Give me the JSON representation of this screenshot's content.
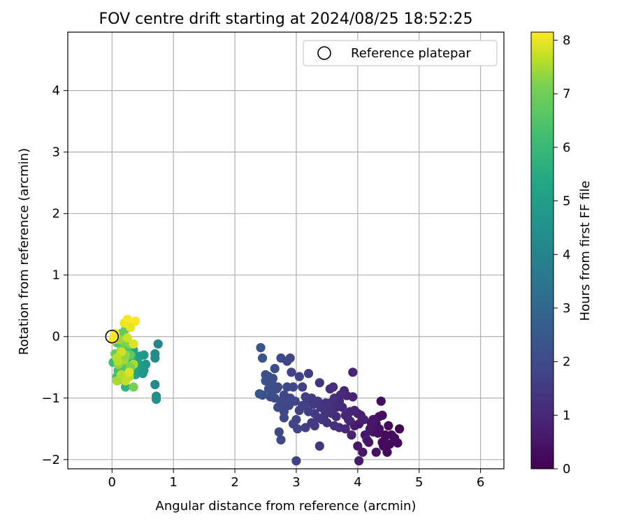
{
  "chart_data": {
    "type": "scatter",
    "title": "FOV centre drift starting at 2024/08/25 18:52:25",
    "xlabel": "Angular distance from reference (arcmin)",
    "ylabel": "Rotation from reference (arcmin)",
    "xlim": [
      -0.72,
      6.38
    ],
    "ylim": [
      -2.15,
      4.95
    ],
    "xticks": [
      0,
      1,
      2,
      3,
      4,
      5,
      6
    ],
    "xtick_labels": [
      "0",
      "1",
      "2",
      "3",
      "4",
      "5",
      "6"
    ],
    "yticks": [
      -2,
      -1,
      0,
      1,
      2,
      3,
      4
    ],
    "ytick_labels": [
      "−2",
      "−1",
      "0",
      "1",
      "2",
      "3",
      "4"
    ],
    "grid": true,
    "legend": {
      "position": "top-right",
      "label": "Reference platepar"
    },
    "reference_point": {
      "x": 0,
      "y": 0
    },
    "colorbar": {
      "label": "Hours from first FF file",
      "colormap": "viridis",
      "range": [
        0,
        8.15
      ],
      "ticks": [
        0,
        1,
        2,
        3,
        4,
        5,
        6,
        7,
        8
      ],
      "tick_labels": [
        "0",
        "1",
        "2",
        "3",
        "4",
        "5",
        "6",
        "7",
        "8"
      ]
    },
    "series": [
      {
        "points": [
          [
            4.68,
            -1.5
          ],
          [
            4.65,
            -1.73
          ],
          [
            4.55,
            -1.6
          ],
          [
            4.45,
            -1.6
          ],
          [
            4.4,
            -1.28
          ],
          [
            4.35,
            -1.3
          ],
          [
            4.3,
            -1.88
          ],
          [
            4.25,
            -1.55
          ],
          [
            4.22,
            -1.4
          ],
          [
            4.08,
            -1.88
          ],
          [
            4.0,
            -1.78
          ],
          [
            3.95,
            -1.45
          ],
          [
            4.48,
            -1.88
          ],
          [
            4.42,
            -1.78
          ],
          [
            4.38,
            -1.05
          ],
          [
            4.33,
            -1.57
          ],
          [
            4.28,
            -1.35
          ],
          [
            4.12,
            -1.6
          ],
          [
            4.15,
            -1.68
          ],
          [
            4.02,
            -1.42
          ],
          [
            4.05,
            -1.28
          ],
          [
            4.18,
            -1.72
          ],
          [
            4.5,
            -1.45
          ],
          [
            4.6,
            -1.65
          ],
          [
            4.1,
            -1.35
          ],
          [
            4.2,
            -1.5
          ],
          [
            4.3,
            -1.42
          ],
          [
            4.45,
            -1.62
          ],
          [
            4.52,
            -1.75
          ],
          [
            4.35,
            -1.5
          ],
          [
            3.9,
            -1.6
          ],
          [
            4.0,
            -1.25
          ],
          [
            4.25,
            -1.35
          ],
          [
            4.4,
            -1.72
          ],
          [
            4.02,
            -2.02
          ],
          [
            3.92,
            -0.58
          ],
          [
            3.8,
            -1.28
          ],
          [
            3.75,
            -1.15
          ],
          [
            3.7,
            -1.48
          ],
          [
            3.88,
            -1.38
          ],
          [
            3.78,
            -0.88
          ],
          [
            3.82,
            -0.96
          ],
          [
            3.65,
            -1.15
          ],
          [
            3.6,
            -0.82
          ],
          [
            3.55,
            -1.08
          ],
          [
            3.5,
            -1.2
          ],
          [
            3.45,
            -1.3
          ],
          [
            3.4,
            -1.15
          ],
          [
            3.35,
            -1.05
          ],
          [
            3.3,
            -1.25
          ],
          [
            3.95,
            -1.2
          ],
          [
            3.7,
            -1.05
          ],
          [
            3.85,
            -1.35
          ],
          [
            3.62,
            -1.0
          ],
          [
            3.38,
            -0.75
          ],
          [
            3.55,
            -0.85
          ],
          [
            3.3,
            -1.45
          ],
          [
            3.42,
            -1.35
          ],
          [
            3.5,
            -1.4
          ],
          [
            3.48,
            -1.08
          ],
          [
            3.58,
            -1.25
          ],
          [
            3.68,
            -1.12
          ],
          [
            3.72,
            -0.95
          ],
          [
            3.88,
            -1.22
          ],
          [
            3.92,
            -0.98
          ],
          [
            3.52,
            -1.18
          ],
          [
            3.28,
            -1.1
          ],
          [
            3.62,
            -1.45
          ],
          [
            3.8,
            -1.5
          ],
          [
            3.65,
            -1.3
          ],
          [
            3.25,
            -1.0
          ],
          [
            3.2,
            -1.22
          ],
          [
            3.15,
            -1.1
          ],
          [
            3.1,
            -1.12
          ],
          [
            3.05,
            -1.2
          ],
          [
            3.0,
            -1.35
          ],
          [
            2.95,
            -1.42
          ],
          [
            3.2,
            -0.6
          ],
          [
            3.1,
            -0.82
          ],
          [
            3.15,
            -0.98
          ],
          [
            3.05,
            -0.65
          ],
          [
            3.02,
            -1.5
          ],
          [
            2.98,
            -1.05
          ],
          [
            2.9,
            -1.0
          ],
          [
            2.85,
            -0.82
          ],
          [
            2.8,
            -0.95
          ],
          [
            2.75,
            -1.05
          ],
          [
            2.7,
            -1.15
          ],
          [
            2.65,
            -1.0
          ],
          [
            2.6,
            -0.95
          ],
          [
            2.55,
            -0.85
          ],
          [
            2.5,
            -0.72
          ],
          [
            2.9,
            -0.35
          ],
          [
            2.85,
            -0.4
          ],
          [
            2.75,
            -0.35
          ],
          [
            2.65,
            -0.52
          ],
          [
            2.55,
            -0.65
          ],
          [
            2.5,
            -0.62
          ],
          [
            2.45,
            -0.35
          ],
          [
            2.42,
            -0.18
          ],
          [
            2.4,
            -0.93
          ],
          [
            2.45,
            -0.95
          ],
          [
            2.6,
            -0.75
          ],
          [
            2.7,
            -0.82
          ],
          [
            2.8,
            -1.22
          ],
          [
            2.88,
            -1.12
          ],
          [
            2.72,
            -1.55
          ],
          [
            2.75,
            -1.68
          ],
          [
            2.8,
            -1.32
          ],
          [
            2.82,
            -0.98
          ],
          [
            2.92,
            -0.58
          ],
          [
            2.95,
            -0.82
          ],
          [
            3.0,
            -2.02
          ],
          [
            3.38,
            -1.78
          ],
          [
            3.15,
            -1.48
          ],
          [
            3.25,
            -1.4
          ],
          [
            3.35,
            -1.32
          ],
          [
            3.45,
            -1.18
          ],
          [
            2.68,
            -0.85
          ],
          [
            2.78,
            -1.1
          ],
          [
            2.58,
            -0.98
          ],
          [
            2.62,
            -0.68
          ],
          [
            0.75,
            -0.12
          ],
          [
            0.7,
            -0.78
          ],
          [
            0.72,
            -0.97
          ],
          [
            0.72,
            -1.02
          ],
          [
            0.7,
            -0.28
          ],
          [
            0.7,
            -0.35
          ],
          [
            0.55,
            -0.45
          ],
          [
            0.52,
            -0.55
          ],
          [
            0.52,
            -0.3
          ],
          [
            0.48,
            -0.48
          ],
          [
            0.45,
            -0.32
          ],
          [
            0.42,
            -0.42
          ],
          [
            0.4,
            -0.55
          ],
          [
            0.38,
            -0.62
          ],
          [
            0.5,
            -0.6
          ],
          [
            0.35,
            -0.22
          ],
          [
            0.32,
            -0.35
          ],
          [
            0.25,
            -0.52
          ],
          [
            0.22,
            -0.82
          ],
          [
            0.18,
            -0.58
          ],
          [
            0.12,
            -0.28
          ],
          [
            0.18,
            -0.15
          ],
          [
            0.25,
            -0.18
          ],
          [
            0.08,
            -0.1
          ],
          [
            0.12,
            -0.02
          ],
          [
            0.15,
            0.05
          ],
          [
            0.22,
            0.12
          ],
          [
            0.02,
            -0.42
          ],
          [
            0.1,
            -0.55
          ],
          [
            0.08,
            -0.65
          ],
          [
            0.12,
            -0.7
          ],
          [
            0.18,
            -0.52
          ],
          [
            0.22,
            -0.45
          ],
          [
            0.3,
            -0.3
          ],
          [
            0.15,
            -0.35
          ],
          [
            0.05,
            -0.28
          ],
          [
            0.15,
            -0.22
          ],
          [
            0.2,
            -0.08
          ],
          [
            0.28,
            -0.12
          ],
          [
            0.1,
            -0.45
          ],
          [
            0.2,
            -0.38
          ],
          [
            0.35,
            -0.45
          ],
          [
            0.28,
            -0.65
          ],
          [
            0.22,
            -0.72
          ],
          [
            0.15,
            -0.62
          ],
          [
            0.08,
            -0.72
          ],
          [
            0.12,
            -0.05
          ],
          [
            0.22,
            -0.3
          ],
          [
            0.3,
            -0.5
          ],
          [
            0.35,
            -0.82
          ],
          [
            0.25,
            -0.02
          ],
          [
            0.28,
            -0.58
          ],
          [
            0.2,
            0.22
          ],
          [
            0.25,
            0.28
          ],
          [
            0.38,
            0.25
          ],
          [
            0.3,
            0.15
          ],
          [
            0.35,
            -0.12
          ],
          [
            0.15,
            -0.25
          ],
          [
            0.08,
            -0.35
          ],
          [
            0.1,
            -0.4
          ],
          [
            0.05,
            0.05
          ],
          [
            0.04,
            0.02
          ],
          [
            0.02,
            -0.05
          ]
        ],
        "hours": [
          0.1,
          0.15,
          0.2,
          0.25,
          0.3,
          0.35,
          0.4,
          0.45,
          0.5,
          0.55,
          0.6,
          0.7,
          0.12,
          0.22,
          0.32,
          0.42,
          0.52,
          0.62,
          0.72,
          0.65,
          0.75,
          0.5,
          0.2,
          0.3,
          0.8,
          0.6,
          0.5,
          0.3,
          0.2,
          0.4,
          0.85,
          0.8,
          0.6,
          0.25,
          0.7,
          0.9,
          1.0,
          1.05,
          1.1,
          0.95,
          1.0,
          1.0,
          1.15,
          1.2,
          1.25,
          1.3,
          1.35,
          1.4,
          1.45,
          1.5,
          0.9,
          1.1,
          0.95,
          1.2,
          1.35,
          1.2,
          1.5,
          1.4,
          1.35,
          1.3,
          1.25,
          1.15,
          1.1,
          0.95,
          0.9,
          1.3,
          1.5,
          1.2,
          1.05,
          1.15,
          1.55,
          1.6,
          1.65,
          1.7,
          1.75,
          1.8,
          1.85,
          1.6,
          1.7,
          1.65,
          1.75,
          1.8,
          1.8,
          1.85,
          1.9,
          1.95,
          2.0,
          2.05,
          2.1,
          2.15,
          2.2,
          2.25,
          1.85,
          1.9,
          1.95,
          2.05,
          2.15,
          2.2,
          2.3,
          2.35,
          2.4,
          2.3,
          2.1,
          2.05,
          1.95,
          1.9,
          2.0,
          1.95,
          1.95,
          1.9,
          1.8,
          1.85,
          1.75,
          1.4,
          1.65,
          1.55,
          1.45,
          1.35,
          2.05,
          1.95,
          2.1,
          2.15,
          4.0,
          4.2,
          4.4,
          4.5,
          4.3,
          4.3,
          4.6,
          4.7,
          4.8,
          4.8,
          4.9,
          5.0,
          5.1,
          5.2,
          4.7,
          5.3,
          5.4,
          5.6,
          5.8,
          6.0,
          6.2,
          6.3,
          6.4,
          6.5,
          6.6,
          6.7,
          6.8,
          6.1,
          6.2,
          6.3,
          6.4,
          6.5,
          6.6,
          6.7,
          6.8,
          6.9,
          7.0,
          7.1,
          7.2,
          7.3,
          7.4,
          7.5,
          7.6,
          7.7,
          7.6,
          7.5,
          7.4,
          7.3,
          7.2,
          7.1,
          7.8,
          7.9,
          8.0,
          8.1,
          8.15,
          8.0,
          7.9,
          7.8,
          7.7,
          7.6,
          8.1,
          8.15,
          8.15
        ]
      }
    ]
  }
}
